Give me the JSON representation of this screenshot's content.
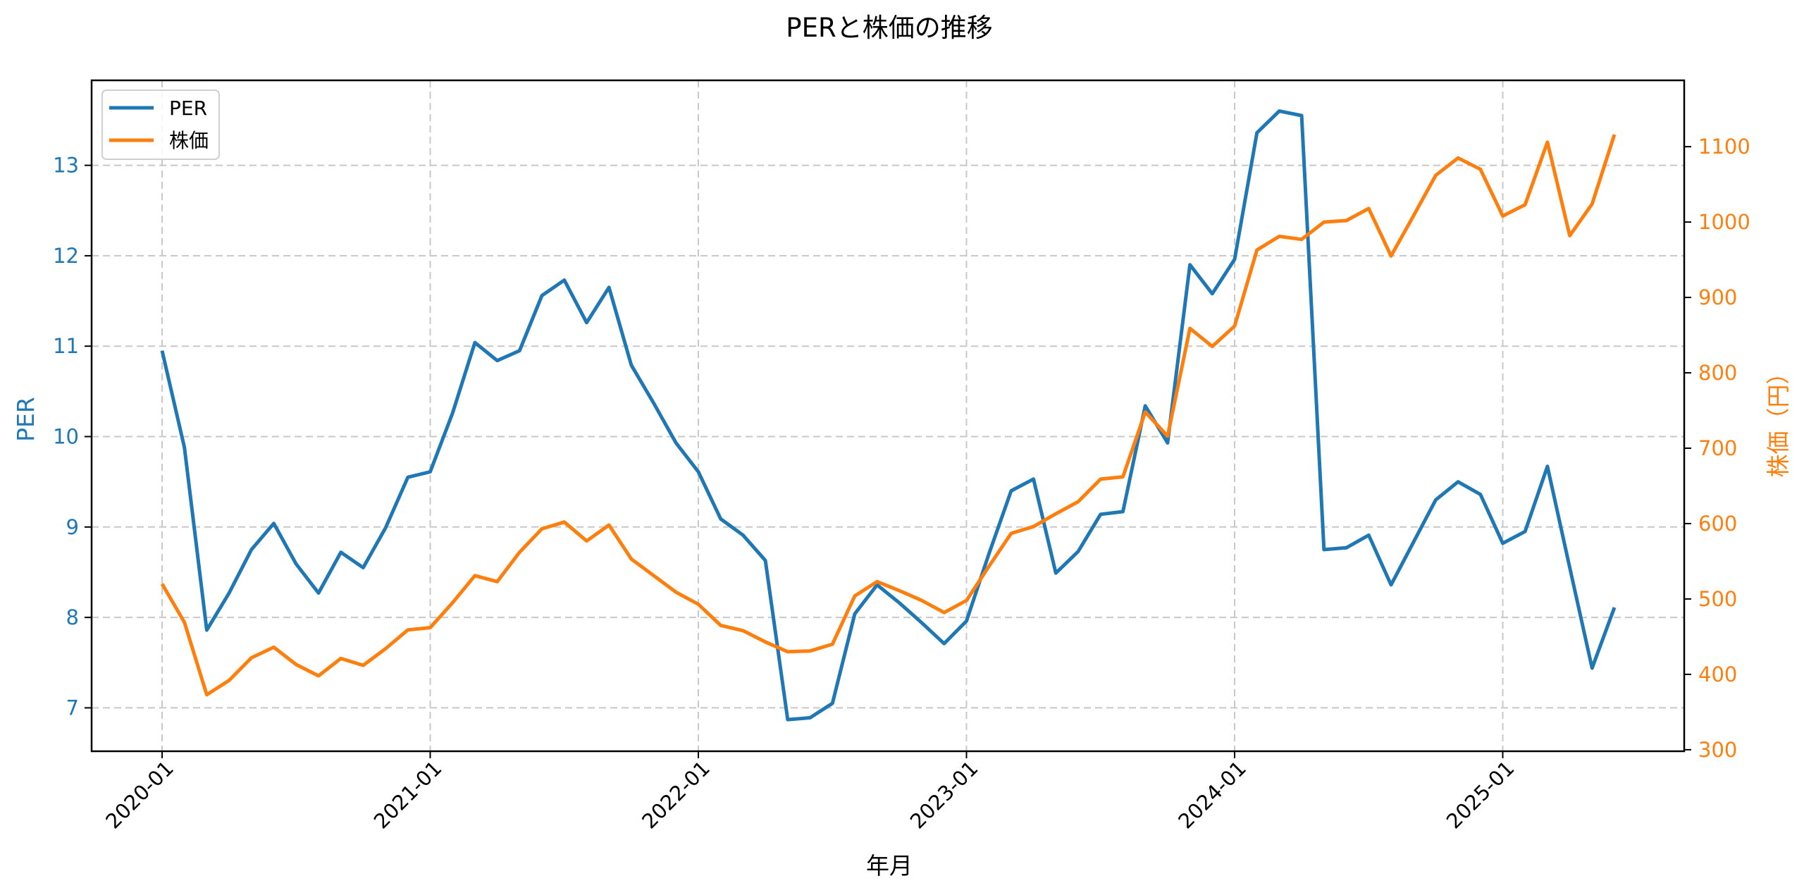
{
  "chart_data": {
    "type": "line",
    "title": "PERと株価の推移",
    "xlabel": "年月",
    "ylabel": "PER",
    "ylabel_right": "株価（円）",
    "x_tick_labels": [
      "2020-01",
      "2021-01",
      "2022-01",
      "2023-01",
      "2024-01",
      "2025-01"
    ],
    "y_ticks_left": [
      7,
      8,
      9,
      10,
      11,
      12,
      13
    ],
    "y_ticks_right": [
      300,
      400,
      500,
      600,
      700,
      800,
      900,
      1000,
      1100
    ],
    "ylim_left": [
      6.52,
      13.94
    ],
    "ylim_right": [
      298,
      1188
    ],
    "grid": true,
    "legend_position": "upper left",
    "colors": {
      "per": "#1f77b4",
      "price": "#ff7f0e",
      "grid": "#c8c8c8"
    },
    "x": [
      "2020-01",
      "2020-02",
      "2020-03",
      "2020-04",
      "2020-05",
      "2020-06",
      "2020-07",
      "2020-08",
      "2020-09",
      "2020-10",
      "2020-11",
      "2020-12",
      "2021-01",
      "2021-02",
      "2021-03",
      "2021-04",
      "2021-05",
      "2021-06",
      "2021-07",
      "2021-08",
      "2021-09",
      "2021-10",
      "2021-11",
      "2021-12",
      "2022-01",
      "2022-02",
      "2022-03",
      "2022-04",
      "2022-05",
      "2022-06",
      "2022-07",
      "2022-08",
      "2022-09",
      "2022-10",
      "2022-11",
      "2022-12",
      "2023-01",
      "2023-02",
      "2023-03",
      "2023-04",
      "2023-05",
      "2023-06",
      "2023-07",
      "2023-08",
      "2023-09",
      "2023-10",
      "2023-11",
      "2023-12",
      "2024-01",
      "2024-02",
      "2024-03",
      "2024-04",
      "2024-05",
      "2024-06",
      "2024-07",
      "2024-08",
      "2024-09",
      "2024-10",
      "2024-11",
      "2024-12",
      "2025-01",
      "2025-02",
      "2025-03",
      "2025-04",
      "2025-05",
      "2025-06"
    ],
    "series": [
      {
        "name": "PER",
        "axis": "left",
        "values": [
          10.95,
          9.88,
          7.86,
          8.27,
          8.75,
          9.04,
          8.59,
          8.27,
          8.72,
          8.55,
          8.99,
          9.55,
          9.61,
          10.26,
          11.04,
          10.84,
          10.95,
          11.56,
          11.73,
          11.26,
          11.65,
          10.79,
          10.37,
          9.93,
          9.61,
          9.09,
          8.91,
          8.63,
          6.87,
          6.89,
          7.05,
          8.04,
          8.36,
          8.16,
          7.94,
          7.71,
          7.96,
          8.7,
          9.4,
          9.53,
          8.49,
          8.73,
          9.14,
          9.17,
          10.34,
          9.93,
          11.9,
          11.58,
          11.96,
          13.36,
          13.6,
          13.55,
          8.75,
          8.77,
          8.91,
          8.36,
          8.83,
          9.3,
          9.5,
          9.36,
          8.82,
          8.95,
          9.67,
          8.55,
          7.44,
          8.11
        ]
      },
      {
        "name": "株価",
        "axis": "right",
        "values": [
          520,
          469,
          373,
          392,
          422,
          436,
          413,
          398,
          421,
          412,
          434,
          459,
          462,
          495,
          531,
          523,
          562,
          593,
          602,
          577,
          598,
          553,
          531,
          509,
          493,
          465,
          458,
          443,
          430,
          431,
          440,
          504,
          523,
          511,
          498,
          482,
          498,
          543,
          587,
          596,
          613,
          629,
          659,
          662,
          748,
          716,
          859,
          835,
          862,
          963,
          981,
          977,
          1000,
          1002,
          1018,
          955,
          1008,
          1062,
          1085,
          1070,
          1008,
          1023,
          1106,
          982,
          1024,
          1116
        ]
      }
    ]
  },
  "legend": {
    "items": [
      {
        "label": "PER",
        "color": "#1f77b4"
      },
      {
        "label": "株価",
        "color": "#ff7f0e"
      }
    ]
  }
}
